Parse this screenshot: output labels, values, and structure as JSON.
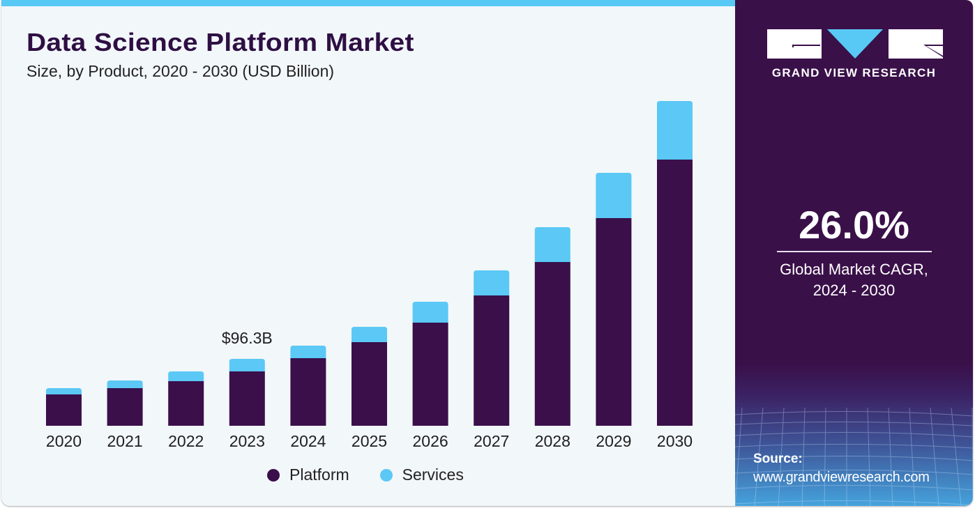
{
  "header": {
    "title": "Data Science Platform Market",
    "subtitle": "Size, by Product, 2020 - 2030 (USD Billion)"
  },
  "colors": {
    "platform": "#3a0f4a",
    "services": "#5bc8f5",
    "accent_bar": "#58c9f5",
    "panel": "#3a1049"
  },
  "chart_data": {
    "type": "bar",
    "stacked": true,
    "title": "Data Science Platform Market",
    "subtitle": "Size, by Product, 2020 - 2030 (USD Billion)",
    "xlabel": "",
    "ylabel": "USD Billion",
    "categories": [
      "2020",
      "2021",
      "2022",
      "2023",
      "2024",
      "2025",
      "2026",
      "2027",
      "2028",
      "2029",
      "2030"
    ],
    "series": [
      {
        "name": "Platform",
        "color": "#3a0f4a",
        "values": [
          45,
          54,
          64,
          78,
          97,
          120,
          148,
          187,
          235,
          298,
          382
        ]
      },
      {
        "name": "Services",
        "color": "#5bc8f5",
        "values": [
          9,
          11,
          14,
          18,
          18,
          22,
          30,
          36,
          50,
          65,
          84
        ]
      }
    ],
    "ylim": [
      0,
      480
    ],
    "grid": false,
    "annotations": [
      {
        "category": "2023",
        "text": "$96.3B"
      }
    ],
    "legend": {
      "position": "bottom",
      "entries": [
        "Platform",
        "Services"
      ]
    }
  },
  "sidebar": {
    "brand": "GRAND VIEW RESEARCH",
    "cagr_value": "26.0%",
    "cagr_label_line1": "Global Market CAGR,",
    "cagr_label_line2": "2024 - 2030",
    "source_label": "Source:",
    "source_url": "www.grandviewresearch.com"
  }
}
